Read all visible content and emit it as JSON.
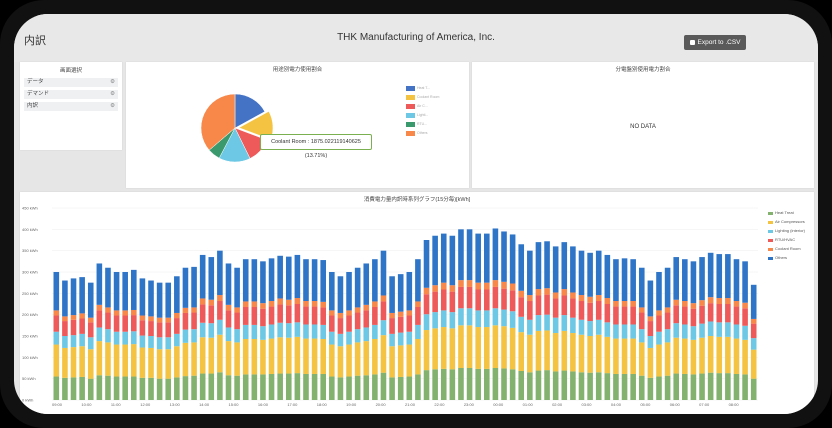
{
  "header": {
    "page_title": "内訳",
    "company": "THK Manufacturing of America, Inc.",
    "export_label": "Export to .CSV"
  },
  "sidebar": {
    "title": "画面選択",
    "items": [
      {
        "label": "データ"
      },
      {
        "label": "デマンド"
      },
      {
        "label": "内訳"
      }
    ]
  },
  "usage_panel": {
    "title": "用途別電力使用割合",
    "tooltip": "Coolant Room : 1875.022119140625 (13.71%)"
  },
  "dist_panel": {
    "title": "分電盤別使用電力割合",
    "no_data": "NO DATA"
  },
  "colors": {
    "blue": "#4472c4",
    "green": "#8bc56a",
    "yellow": "#f5c342",
    "red": "#ee5a5a",
    "cyan": "#6cc8e4",
    "teal": "#3a9a6e",
    "orange": "#f7884a",
    "olive": "#83b26f"
  },
  "chart_data": [
    {
      "type": "pie",
      "title": "用途別電力使用割合",
      "legend_placement": "right",
      "slices": [
        {
          "name": "Heat T...",
          "value": 17.0,
          "color": "#4472c4"
        },
        {
          "name": "Coolant Room",
          "value": 13.71,
          "color": "#f5c342"
        },
        {
          "name": "Air C...",
          "value": 12.0,
          "color": "#ee5a5a"
        },
        {
          "name": "Lighti...",
          "value": 15.0,
          "color": "#6cc8e4"
        },
        {
          "name": "RTU...",
          "value": 6.0,
          "color": "#3a9a6e"
        },
        {
          "name": "Others",
          "value": 36.3,
          "color": "#f7884a"
        }
      ]
    },
    {
      "type": "bar",
      "stacked": true,
      "title": "消費電力量内訳時系列グラフ(15分毎)[kWh]",
      "ylim": [
        0,
        450
      ],
      "y_ticks": [
        "0 kWh",
        "50 kWh",
        "100 kWh",
        "150 kWh",
        "200 kWh",
        "250 kWh",
        "300 kWh",
        "350 kWh",
        "400 kWh",
        "450 kWh"
      ],
      "x_ticks": [
        "09:00",
        "10:00",
        "11:00",
        "12:00",
        "13:00",
        "14:00",
        "15:00",
        "16:00",
        "17:00",
        "18:00",
        "19:00",
        "20:00",
        "21:00",
        "22:00",
        "23:00",
        "00:00",
        "01:00",
        "02:00",
        "03:00",
        "04:00",
        "05:00",
        "06:00",
        "07:00",
        "08:00"
      ],
      "legend_placement": "right",
      "totals": [
        300,
        280,
        285,
        288,
        275,
        320,
        310,
        300,
        300,
        305,
        285,
        280,
        275,
        275,
        290,
        310,
        312,
        340,
        335,
        350,
        320,
        310,
        330,
        330,
        325,
        332,
        338,
        336,
        340,
        330,
        330,
        328,
        300,
        290,
        300,
        310,
        320,
        330,
        350,
        290,
        295,
        300,
        330,
        375,
        385,
        390,
        385,
        400,
        400,
        390,
        390,
        402,
        395,
        388,
        365,
        350,
        370,
        372,
        360,
        370,
        360,
        350,
        345,
        350,
        340,
        330,
        332,
        330,
        310,
        280,
        300,
        310,
        335,
        330,
        325,
        335,
        345,
        342,
        342,
        330,
        325,
        270
      ],
      "series": [
        {
          "name": "Heat Treat",
          "color": "#83b26f",
          "values": [
            55,
            52,
            53,
            54,
            50,
            58,
            57,
            55,
            55,
            55,
            52,
            52,
            50,
            50,
            53,
            56,
            57,
            62,
            62,
            65,
            58,
            57,
            60,
            60,
            60,
            61,
            62,
            62,
            63,
            61,
            61,
            61,
            55,
            53,
            55,
            57,
            58,
            60,
            64,
            53,
            54,
            55,
            60,
            70,
            72,
            73,
            72,
            75,
            75,
            73,
            73,
            75,
            74,
            72,
            68,
            65,
            69,
            70,
            67,
            69,
            67,
            65,
            64,
            65,
            63,
            61,
            61,
            61,
            57,
            52,
            55,
            57,
            62,
            61,
            60,
            62,
            64,
            63,
            63,
            61,
            60,
            50
          ]
        },
        {
          "name": "Air Compressors",
          "color": "#f5c342",
          "values": [
            75,
            70,
            71,
            72,
            69,
            80,
            78,
            75,
            75,
            76,
            71,
            70,
            69,
            69,
            73,
            78,
            78,
            85,
            84,
            88,
            80,
            78,
            83,
            83,
            81,
            83,
            85,
            84,
            85,
            83,
            83,
            82,
            75,
            73,
            75,
            78,
            80,
            83,
            88,
            73,
            74,
            75,
            83,
            94,
            96,
            98,
            96,
            100,
            100,
            98,
            98,
            100,
            99,
            97,
            91,
            88,
            93,
            93,
            90,
            93,
            90,
            88,
            86,
            88,
            85,
            83,
            83,
            83,
            78,
            70,
            75,
            78,
            84,
            83,
            81,
            84,
            86,
            85,
            85,
            83,
            81,
            68
          ]
        },
        {
          "name": "Lighting (interior)",
          "color": "#6cc8e4",
          "values": [
            30,
            28,
            28,
            29,
            28,
            32,
            31,
            30,
            30,
            30,
            28,
            28,
            28,
            28,
            29,
            31,
            31,
            34,
            34,
            35,
            32,
            31,
            33,
            33,
            32,
            33,
            34,
            34,
            34,
            33,
            33,
            33,
            30,
            29,
            30,
            31,
            32,
            33,
            35,
            29,
            30,
            30,
            33,
            37,
            38,
            39,
            38,
            40,
            40,
            39,
            39,
            40,
            39,
            39,
            36,
            35,
            37,
            37,
            36,
            37,
            36,
            35,
            35,
            35,
            34,
            33,
            33,
            33,
            31,
            28,
            30,
            31,
            34,
            33,
            32,
            33,
            34,
            34,
            34,
            33,
            33,
            27
          ]
        },
        {
          "name": "RTU/HVAC",
          "color": "#ee5a5a",
          "values": [
            38,
            35,
            36,
            36,
            35,
            40,
            39,
            38,
            38,
            38,
            36,
            35,
            35,
            35,
            37,
            39,
            39,
            43,
            42,
            44,
            40,
            39,
            42,
            42,
            41,
            42,
            43,
            42,
            43,
            42,
            42,
            41,
            38,
            37,
            38,
            39,
            40,
            42,
            44,
            37,
            37,
            38,
            42,
            47,
            48,
            49,
            48,
            50,
            50,
            49,
            49,
            50,
            49,
            49,
            46,
            44,
            46,
            47,
            45,
            46,
            45,
            44,
            43,
            44,
            43,
            42,
            42,
            42,
            39,
            35,
            38,
            39,
            42,
            42,
            41,
            42,
            43,
            43,
            43,
            42,
            41,
            34
          ]
        },
        {
          "name": "Coolant Room",
          "color": "#f7884a",
          "values": [
            12,
            11,
            11,
            12,
            11,
            13,
            12,
            12,
            12,
            12,
            11,
            11,
            11,
            11,
            12,
            12,
            12,
            14,
            13,
            14,
            13,
            12,
            13,
            13,
            13,
            13,
            14,
            13,
            14,
            13,
            13,
            13,
            12,
            12,
            12,
            12,
            13,
            13,
            14,
            12,
            12,
            12,
            13,
            15,
            15,
            16,
            15,
            16,
            16,
            16,
            16,
            16,
            16,
            16,
            15,
            14,
            15,
            15,
            14,
            15,
            14,
            14,
            14,
            14,
            14,
            13,
            13,
            13,
            12,
            11,
            12,
            12,
            13,
            13,
            13,
            13,
            14,
            14,
            14,
            13,
            13,
            11
          ]
        },
        {
          "name": "Others",
          "color": "#2e75c7",
          "values": [
            90,
            84,
            86,
            85,
            82,
            97,
            93,
            90,
            90,
            94,
            87,
            84,
            82,
            82,
            86,
            94,
            95,
            102,
            100,
            104,
            97,
            93,
            99,
            99,
            98,
            100,
            100,
            101,
            101,
            98,
            98,
            98,
            90,
            86,
            90,
            93,
            97,
            99,
            105,
            86,
            88,
            90,
            99,
            112,
            116,
            115,
            116,
            119,
            119,
            115,
            115,
            121,
            118,
            115,
            109,
            104,
            110,
            110,
            108,
            110,
            108,
            104,
            103,
            104,
            101,
            98,
            100,
            98,
            93,
            84,
            90,
            93,
            100,
            98,
            98,
            101,
            104,
            103,
            103,
            98,
            97,
            80
          ]
        }
      ]
    }
  ]
}
